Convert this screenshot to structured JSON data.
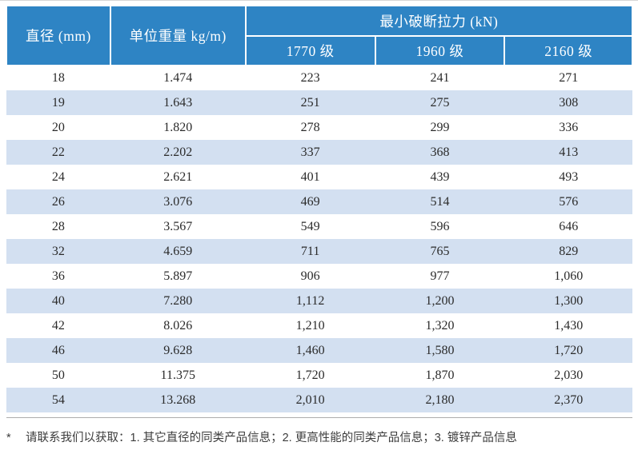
{
  "table": {
    "header": {
      "diameter": "直径 (mm)",
      "unit_weight": "单位重量 kg/m)",
      "breaking_force": "最小破断拉力 (kN)",
      "grades": [
        "1770 级",
        "1960 级",
        "2160 级"
      ]
    },
    "rows": [
      [
        "18",
        "1.474",
        "223",
        "241",
        "271"
      ],
      [
        "19",
        "1.643",
        "251",
        "275",
        "308"
      ],
      [
        "20",
        "1.820",
        "278",
        "299",
        "336"
      ],
      [
        "22",
        "2.202",
        "337",
        "368",
        "413"
      ],
      [
        "24",
        "2.621",
        "401",
        "439",
        "493"
      ],
      [
        "26",
        "3.076",
        "469",
        "514",
        "576"
      ],
      [
        "28",
        "3.567",
        "549",
        "596",
        "646"
      ],
      [
        "32",
        "4.659",
        "711",
        "765",
        "829"
      ],
      [
        "36",
        "5.897",
        "906",
        "977",
        "1,060"
      ],
      [
        "40",
        "7.280",
        "1,112",
        "1,200",
        "1,300"
      ],
      [
        "42",
        "8.026",
        "1,210",
        "1,320",
        "1,430"
      ],
      [
        "46",
        "9.628",
        "1,460",
        "1,580",
        "1,720"
      ],
      [
        "50",
        "11.375",
        "1,720",
        "1,870",
        "2,030"
      ],
      [
        "54",
        "13.268",
        "2,010",
        "2,180",
        "2,370"
      ]
    ]
  },
  "footnote": {
    "marker": "*",
    "text": "请联系我们以获取：1. 其它直径的同类产品信息；2. 更高性能的同类产品信息；3. 镀锌产品信息"
  },
  "colors": {
    "header_blue": "#2e84c4",
    "stripe_blue": "#d3e0f1",
    "body_text": "#2b2b2b"
  }
}
